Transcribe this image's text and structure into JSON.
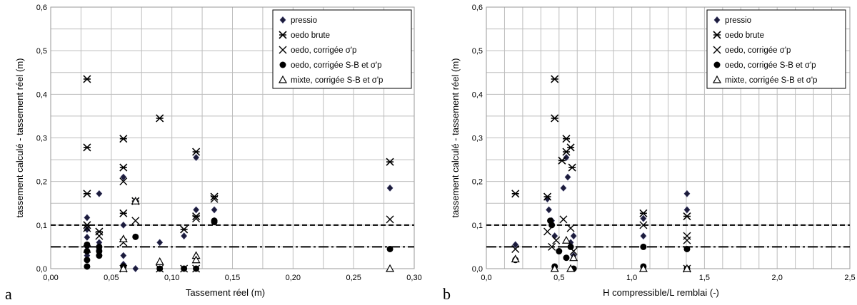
{
  "legend_entries": [
    {
      "key": "pressio",
      "label": "pressio",
      "marker": "diamond"
    },
    {
      "key": "oedo_brute",
      "label": "oedo brute",
      "marker": "asterisk"
    },
    {
      "key": "oedo_corr_sp",
      "label": "oedo, corrigée σ'p",
      "marker": "cross"
    },
    {
      "key": "oedo_corr_sb",
      "label": "oedo, corrigée S-B et σ'p",
      "marker": "circle"
    },
    {
      "key": "mixte_corr_sb",
      "label": "mixte, corrigée S-B et σ'p",
      "marker": "triangle"
    }
  ],
  "chart_data": [
    {
      "panel_label": "a",
      "type": "scatter",
      "xlabel": "Tassement réel  (m)",
      "ylabel": "tassement calculé - tassement réel (m)",
      "xlim": [
        0,
        0.3
      ],
      "ylim": [
        0,
        0.6
      ],
      "x_ticks": [
        "0,00",
        "0,05",
        "0,10",
        "0,15",
        "0,20",
        "0,25",
        "0,30"
      ],
      "y_ticks": [
        "0,0",
        "0,1",
        "0,2",
        "0,3",
        "0,4",
        "0,5",
        "0,6"
      ],
      "x_minor_step": 0.025,
      "y_minor_step": 0.05,
      "grid": true,
      "legend_position": "top-right",
      "reference_lines": [
        {
          "y": 0.1,
          "style": "dashed"
        },
        {
          "y": 0.05,
          "style": "dash-dot"
        }
      ],
      "series": [
        {
          "key": "pressio",
          "points": [
            [
              0.03,
              0.117
            ],
            [
              0.03,
              0.09
            ],
            [
              0.03,
              0.072
            ],
            [
              0.03,
              0.05
            ],
            [
              0.03,
              0.03
            ],
            [
              0.04,
              0.172
            ],
            [
              0.04,
              0.06
            ],
            [
              0.04,
              0.045
            ],
            [
              0.04,
              0.03
            ],
            [
              0.06,
              0.21
            ],
            [
              0.06,
              0.1
            ],
            [
              0.06,
              0.03
            ],
            [
              0.06,
              0.01
            ],
            [
              0.07,
              0.155
            ],
            [
              0.07,
              0.0
            ],
            [
              0.09,
              0.06
            ],
            [
              0.11,
              0.075
            ],
            [
              0.12,
              0.255
            ],
            [
              0.12,
              0.135
            ],
            [
              0.135,
              0.135
            ],
            [
              0.135,
              0.11
            ],
            [
              0.28,
              0.185
            ]
          ]
        },
        {
          "key": "oedo_brute",
          "points": [
            [
              0.03,
              0.435
            ],
            [
              0.03,
              0.278
            ],
            [
              0.03,
              0.172
            ],
            [
              0.03,
              0.1
            ],
            [
              0.04,
              0.085
            ],
            [
              0.06,
              0.298
            ],
            [
              0.06,
              0.232
            ],
            [
              0.06,
              0.127
            ],
            [
              0.07,
              0.155
            ],
            [
              0.09,
              0.345
            ],
            [
              0.11,
              0.09
            ],
            [
              0.12,
              0.268
            ],
            [
              0.12,
              0.12
            ],
            [
              0.135,
              0.165
            ],
            [
              0.28,
              0.245
            ]
          ]
        },
        {
          "key": "oedo_corr_sp",
          "points": [
            [
              0.03,
              0.093
            ],
            [
              0.03,
              0.045
            ],
            [
              0.04,
              0.075
            ],
            [
              0.06,
              0.2
            ],
            [
              0.06,
              0.06
            ],
            [
              0.06,
              0.0
            ],
            [
              0.07,
              0.11
            ],
            [
              0.09,
              0.0
            ],
            [
              0.11,
              0.0
            ],
            [
              0.12,
              0.115
            ],
            [
              0.12,
              0.0
            ],
            [
              0.135,
              0.16
            ],
            [
              0.28,
              0.113
            ]
          ]
        },
        {
          "key": "oedo_corr_sb",
          "points": [
            [
              0.03,
              0.055
            ],
            [
              0.03,
              0.04
            ],
            [
              0.03,
              0.02
            ],
            [
              0.03,
              0.005
            ],
            [
              0.04,
              0.05
            ],
            [
              0.04,
              0.04
            ],
            [
              0.04,
              0.03
            ],
            [
              0.06,
              0.005
            ],
            [
              0.07,
              0.073
            ],
            [
              0.09,
              0.0
            ],
            [
              0.11,
              0.0
            ],
            [
              0.12,
              0.0
            ],
            [
              0.135,
              0.11
            ],
            [
              0.135,
              0.107
            ],
            [
              0.28,
              0.045
            ]
          ]
        },
        {
          "key": "mixte_corr_sb",
          "points": [
            [
              0.06,
              0.068
            ],
            [
              0.06,
              0.0
            ],
            [
              0.07,
              0.155
            ],
            [
              0.09,
              0.016
            ],
            [
              0.12,
              0.03
            ],
            [
              0.12,
              0.02
            ],
            [
              0.28,
              0.0
            ]
          ]
        }
      ]
    },
    {
      "panel_label": "b",
      "type": "scatter",
      "xlabel": "H compressible/L remblai (-)",
      "ylabel": "tassement calculé - tassement réel (m)",
      "xlim": [
        0,
        2.5
      ],
      "ylim": [
        0,
        0.6
      ],
      "x_ticks": [
        "0,0",
        "0,5",
        "1,0",
        "1,5",
        "2,0",
        "2,5"
      ],
      "y_ticks": [
        "0,0",
        "0,1",
        "0,2",
        "0,3",
        "0,4",
        "0,5",
        "0,6"
      ],
      "x_minor_step": 0.125,
      "y_minor_step": 0.05,
      "grid": true,
      "legend_position": "top-right",
      "reference_lines": [
        {
          "y": 0.1,
          "style": "dashed"
        },
        {
          "y": 0.05,
          "style": "dash-dot"
        }
      ],
      "series": [
        {
          "key": "pressio",
          "points": [
            [
              0.2,
              0.055
            ],
            [
              0.42,
              0.16
            ],
            [
              0.43,
              0.135
            ],
            [
              0.45,
              0.11
            ],
            [
              0.47,
              0.075
            ],
            [
              0.5,
              0.04
            ],
            [
              0.53,
              0.185
            ],
            [
              0.55,
              0.255
            ],
            [
              0.56,
              0.21
            ],
            [
              0.58,
              0.06
            ],
            [
              0.6,
              0.075
            ],
            [
              0.6,
              0.03
            ],
            [
              1.08,
              0.115
            ],
            [
              1.08,
              0.075
            ],
            [
              1.38,
              0.172
            ],
            [
              1.38,
              0.135
            ]
          ]
        },
        {
          "key": "oedo_brute",
          "points": [
            [
              0.2,
              0.172
            ],
            [
              0.42,
              0.165
            ],
            [
              0.47,
              0.435
            ],
            [
              0.47,
              0.345
            ],
            [
              0.52,
              0.248
            ],
            [
              0.55,
              0.298
            ],
            [
              0.55,
              0.268
            ],
            [
              0.58,
              0.278
            ],
            [
              0.59,
              0.232
            ],
            [
              1.08,
              0.127
            ],
            [
              1.38,
              0.12
            ]
          ]
        },
        {
          "key": "oedo_corr_sp",
          "points": [
            [
              0.2,
              0.045
            ],
            [
              0.42,
              0.085
            ],
            [
              0.45,
              0.05
            ],
            [
              0.48,
              0.065
            ],
            [
              0.53,
              0.113
            ],
            [
              0.58,
              0.093
            ],
            [
              0.6,
              0.04
            ],
            [
              1.08,
              0.1
            ],
            [
              1.38,
              0.075
            ],
            [
              1.38,
              0.065
            ],
            [
              1.38,
              0.0
            ]
          ]
        },
        {
          "key": "oedo_corr_sb",
          "points": [
            [
              0.2,
              0.02
            ],
            [
              0.44,
              0.11
            ],
            [
              0.45,
              0.1
            ],
            [
              0.47,
              0.005
            ],
            [
              0.5,
              0.04
            ],
            [
              0.55,
              0.025
            ],
            [
              0.58,
              0.05
            ],
            [
              0.6,
              0.0
            ],
            [
              1.08,
              0.05
            ],
            [
              1.08,
              0.005
            ],
            [
              1.38,
              0.045
            ],
            [
              1.38,
              0.0
            ]
          ]
        },
        {
          "key": "mixte_corr_sb",
          "points": [
            [
              0.2,
              0.022
            ],
            [
              0.47,
              0.0
            ],
            [
              0.55,
              0.065
            ],
            [
              0.58,
              0.0
            ],
            [
              0.6,
              0.025
            ],
            [
              1.08,
              0.0
            ],
            [
              1.38,
              0.0
            ]
          ]
        }
      ]
    }
  ]
}
